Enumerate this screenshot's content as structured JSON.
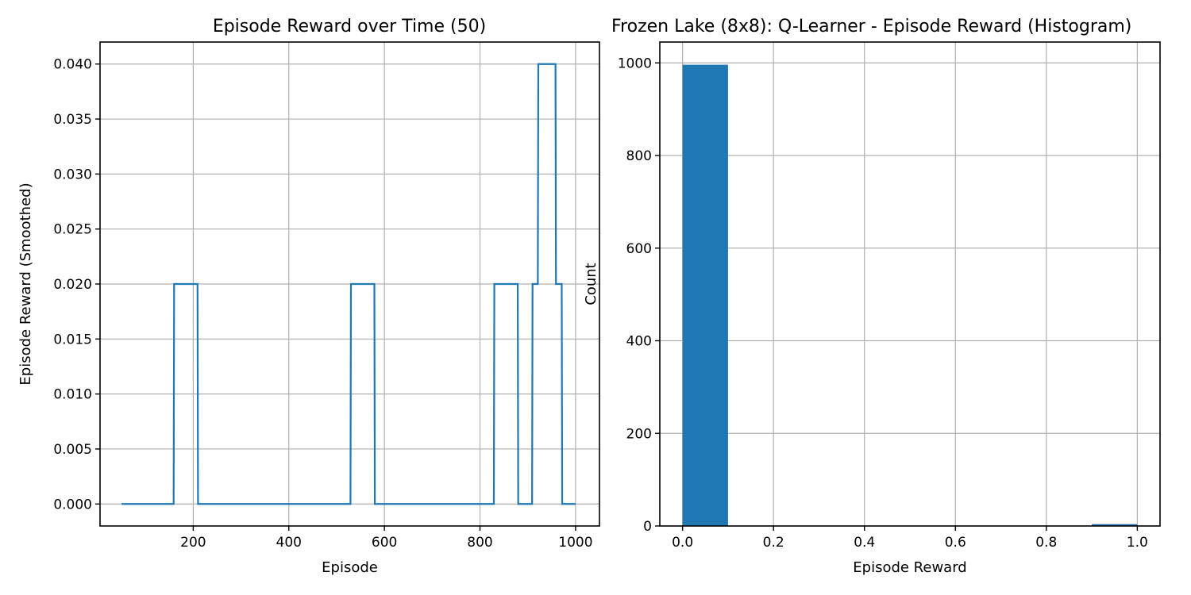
{
  "colors": {
    "series": "#1f77b4",
    "grid": "#b0b0b0",
    "axes": "#000000"
  },
  "chart_data": [
    {
      "type": "line",
      "title": "Episode Reward over Time (50)",
      "xlabel": "Episode",
      "ylabel": "Episode Reward (Smoothed)",
      "xlim": [
        5,
        1050
      ],
      "ylim": [
        -0.002,
        0.042
      ],
      "xticks": [
        200,
        400,
        600,
        800,
        1000
      ],
      "xtick_labels": [
        "200",
        "400",
        "600",
        "800",
        "1000"
      ],
      "yticks": [
        0,
        0.005,
        0.01,
        0.015,
        0.02,
        0.025,
        0.03,
        0.035,
        0.04
      ],
      "ytick_labels": [
        "0.000",
        "0.005",
        "0.010",
        "0.015",
        "0.020",
        "0.025",
        "0.030",
        "0.035",
        "0.040"
      ],
      "grid": true,
      "legend": "none",
      "step": true,
      "series": [
        {
          "x": [
            50,
            159,
            160,
            209,
            210,
            529,
            530,
            579,
            580,
            829,
            830,
            879,
            880,
            909,
            910,
            921,
            922,
            958,
            959,
            971,
            972,
            1000
          ],
          "y": [
            0,
            0,
            0.02,
            0.02,
            0,
            0,
            0.02,
            0.02,
            0,
            0,
            0.02,
            0.02,
            0,
            0,
            0.02,
            0.02,
            0.04,
            0.04,
            0.02,
            0.02,
            0,
            0
          ]
        }
      ]
    },
    {
      "type": "bar",
      "title": "Frozen Lake (8x8): Q-Learner - Episode Reward (Histogram)",
      "xlabel": "Episode Reward",
      "ylabel": "Count",
      "xlim": [
        -0.05,
        1.05
      ],
      "ylim": [
        0,
        1045
      ],
      "xticks": [
        0,
        0.2,
        0.4,
        0.6,
        0.8,
        1.0
      ],
      "xtick_labels": [
        "0.0",
        "0.2",
        "0.4",
        "0.6",
        "0.8",
        "1.0"
      ],
      "yticks": [
        0,
        200,
        400,
        600,
        800,
        1000
      ],
      "ytick_labels": [
        "0",
        "200",
        "400",
        "600",
        "800",
        "1000"
      ],
      "grid": true,
      "legend": "none",
      "bin_edges": [
        0,
        0.1,
        0.2,
        0.3,
        0.4,
        0.5,
        0.6,
        0.7,
        0.8,
        0.9,
        1.0
      ],
      "values": [
        996,
        0,
        0,
        0,
        0,
        0,
        0,
        0,
        0,
        4
      ]
    }
  ]
}
